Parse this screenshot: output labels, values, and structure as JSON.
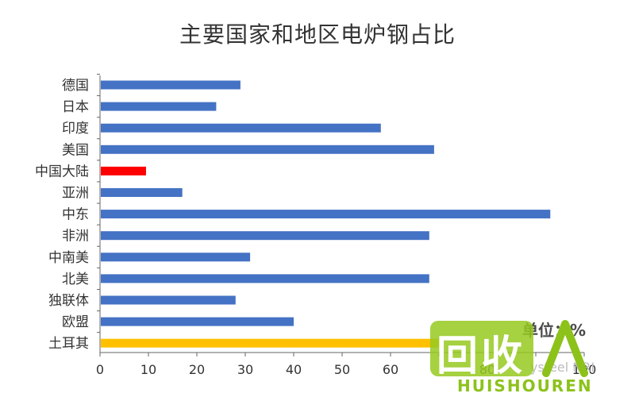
{
  "chart_data": {
    "type": "bar",
    "orientation": "horizontal",
    "title": "主要国家和地区电炉钢占比",
    "unit_label": "单位：%",
    "categories": [
      "德国",
      "日本",
      "印度",
      "美国",
      "中国大陆",
      "亚洲",
      "中东",
      "非洲",
      "中南美",
      "北美",
      "独联体",
      "欧盟",
      "土耳其"
    ],
    "values": [
      29,
      24,
      58,
      69,
      9.5,
      17,
      93,
      68,
      31,
      68,
      28,
      40,
      70
    ],
    "bar_colors": [
      "#4472c4",
      "#4472c4",
      "#4472c4",
      "#4472c4",
      "#ff0000",
      "#4472c4",
      "#4472c4",
      "#4472c4",
      "#4472c4",
      "#4472c4",
      "#4472c4",
      "#4472c4",
      "#ffc000"
    ],
    "xlim": [
      0,
      100
    ],
    "xticks": [
      0,
      10,
      20,
      30,
      40,
      50,
      60,
      70,
      80,
      90,
      100
    ],
    "xticks_shown": [
      "0",
      "10",
      "20",
      "30",
      "40",
      "50",
      "60",
      "",
      "80",
      "",
      "100"
    ],
    "xlabel": "",
    "ylabel": "",
    "grid": false,
    "legend": "none"
  },
  "watermark": {
    "main_text": "回收",
    "sub_text": "HUISHOUREN",
    "source_fragment": "ysteel NRI",
    "colors": {
      "green": "#8cc21a"
    }
  }
}
